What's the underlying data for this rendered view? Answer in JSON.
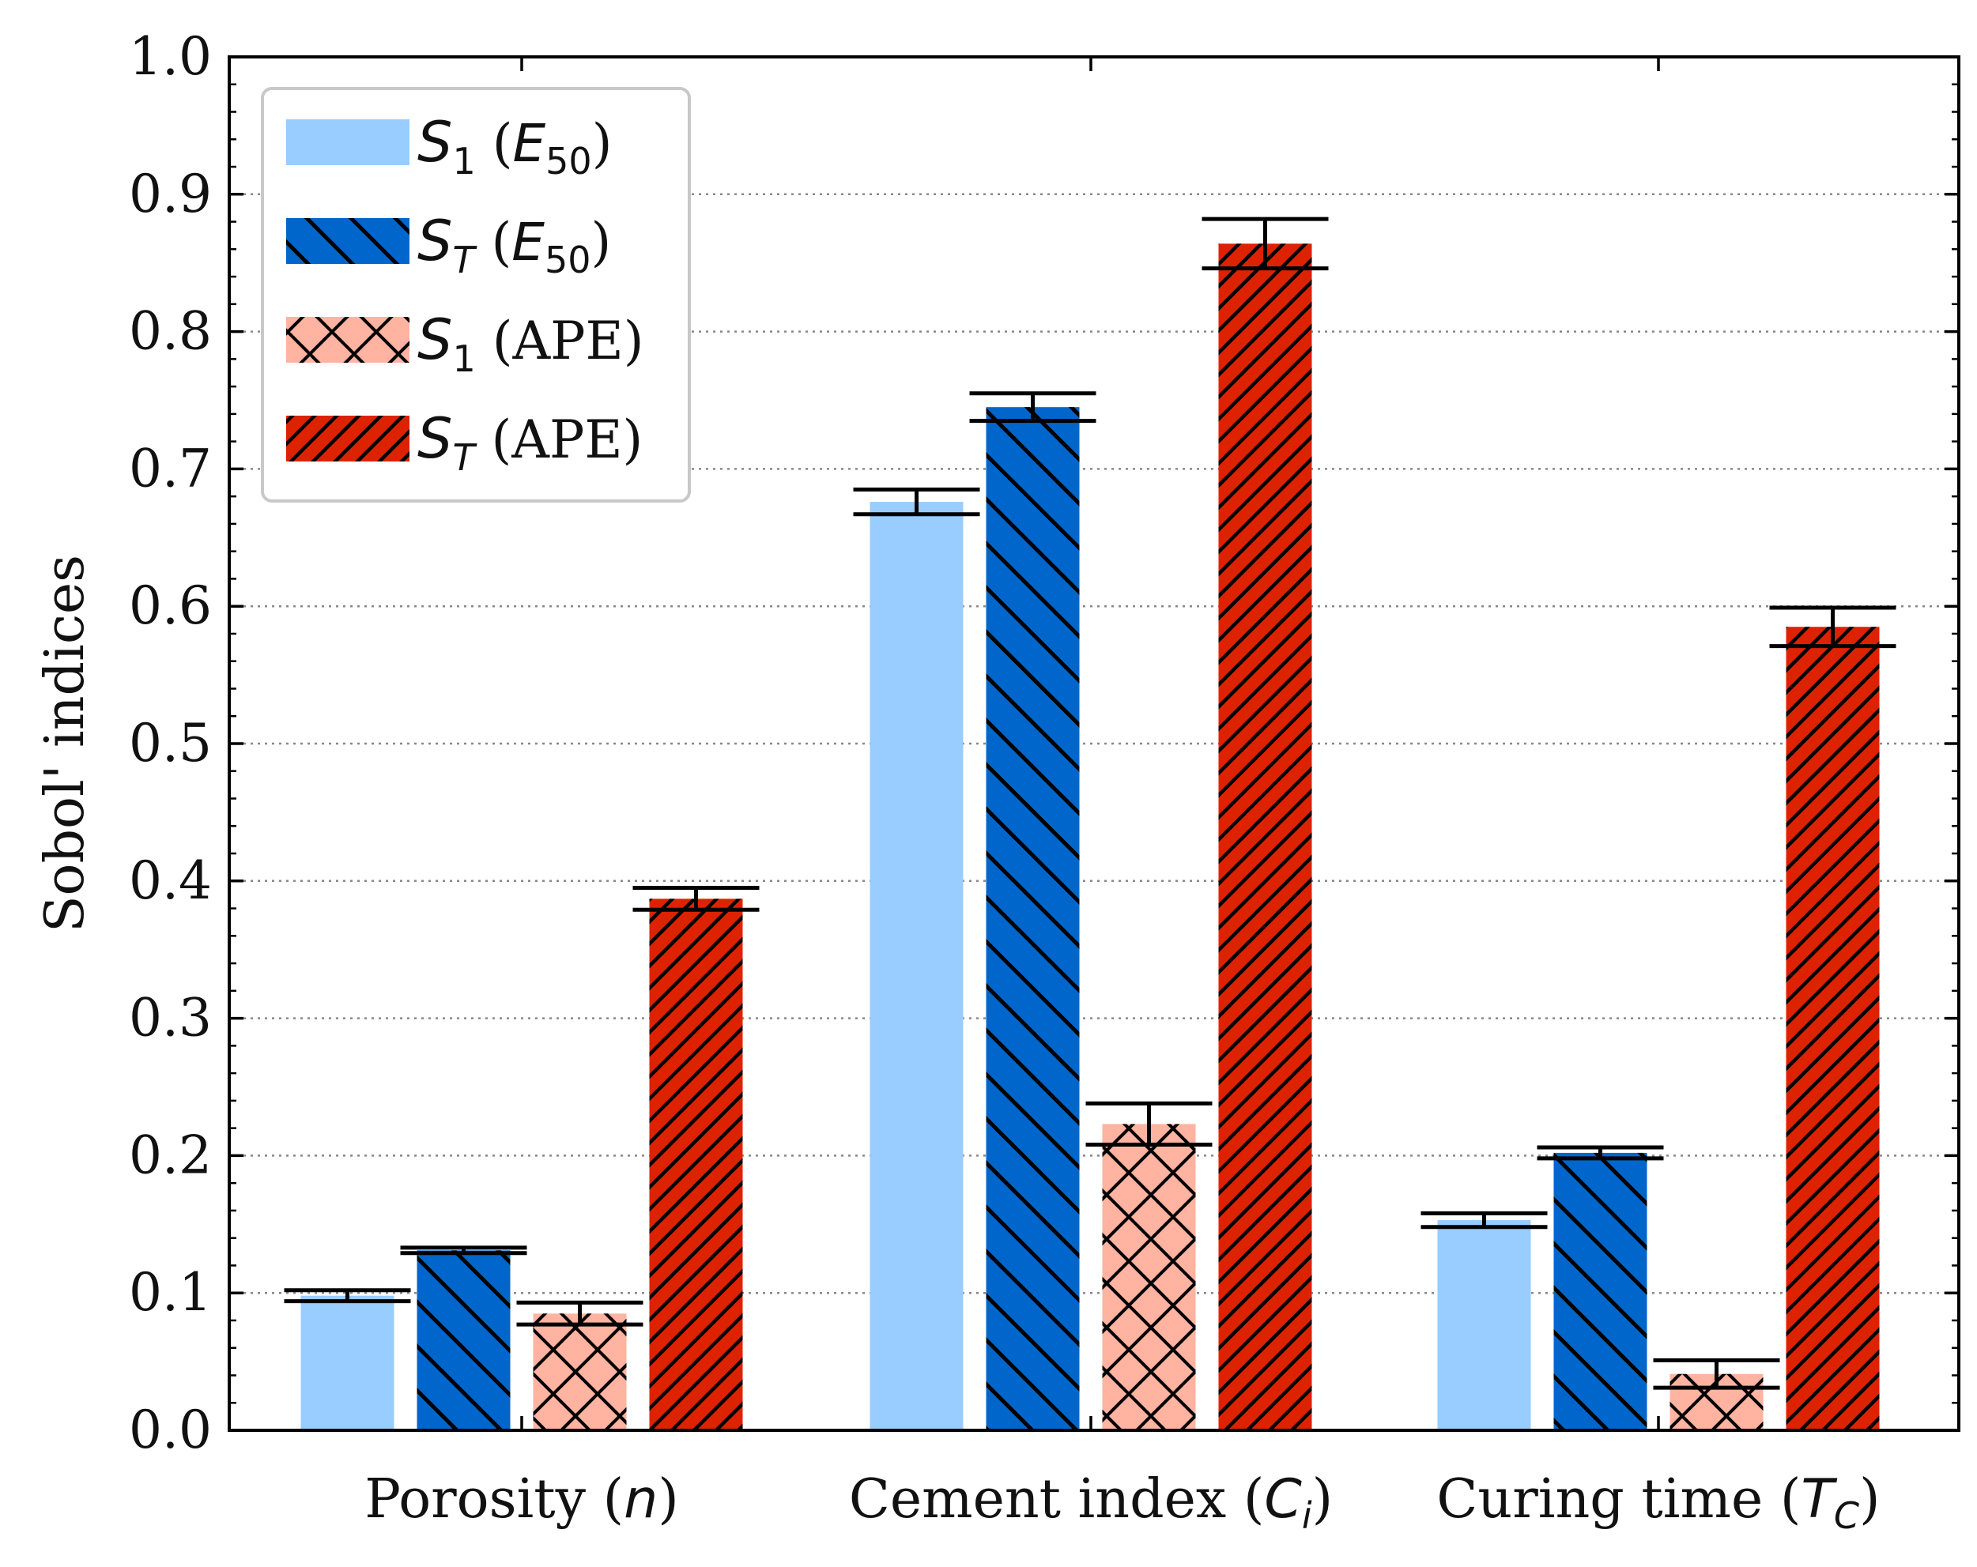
{
  "chart_data": {
    "type": "bar",
    "title": "",
    "xlabel": "",
    "ylabel": "Sobol' indices",
    "ylim": [
      0,
      1.0
    ],
    "yticks": [
      "0.0",
      "0.1",
      "0.2",
      "0.3",
      "0.4",
      "0.5",
      "0.6",
      "0.7",
      "0.8",
      "0.9",
      "1.0"
    ],
    "grid": "horizontal dotted",
    "legend_position": "top-left",
    "categories": [
      {
        "name": "Porosity",
        "symbol": "n",
        "sub": ""
      },
      {
        "name": "Cement index",
        "symbol": "C",
        "sub": "i"
      },
      {
        "name": "Curing time",
        "symbol": "T",
        "sub": "C"
      }
    ],
    "series": [
      {
        "index": "S",
        "index_sub": "1",
        "target": "E",
        "target_sub": "50",
        "target_italic": true,
        "color": "#99ccff",
        "hatch": "none",
        "values": [
          0.098,
          0.676,
          0.153
        ],
        "errors": [
          0.004,
          0.009,
          0.005
        ]
      },
      {
        "index": "S",
        "index_sub": "T",
        "target": "E",
        "target_sub": "50",
        "target_italic": true,
        "color": "#0066cc",
        "hatch": "backslash",
        "values": [
          0.131,
          0.745,
          0.202
        ],
        "errors": [
          0.002,
          0.01,
          0.004
        ]
      },
      {
        "index": "S",
        "index_sub": "1",
        "target": "APE",
        "target_sub": "",
        "target_italic": false,
        "color": "#ffb3a0",
        "hatch": "cross",
        "values": [
          0.085,
          0.223,
          0.041
        ],
        "errors": [
          0.008,
          0.015,
          0.01
        ]
      },
      {
        "index": "S",
        "index_sub": "T",
        "target": "APE",
        "target_sub": "",
        "target_italic": false,
        "color": "#dd2200",
        "hatch": "slash",
        "values": [
          0.387,
          0.864,
          0.585
        ],
        "errors": [
          0.008,
          0.018,
          0.014
        ]
      }
    ]
  }
}
